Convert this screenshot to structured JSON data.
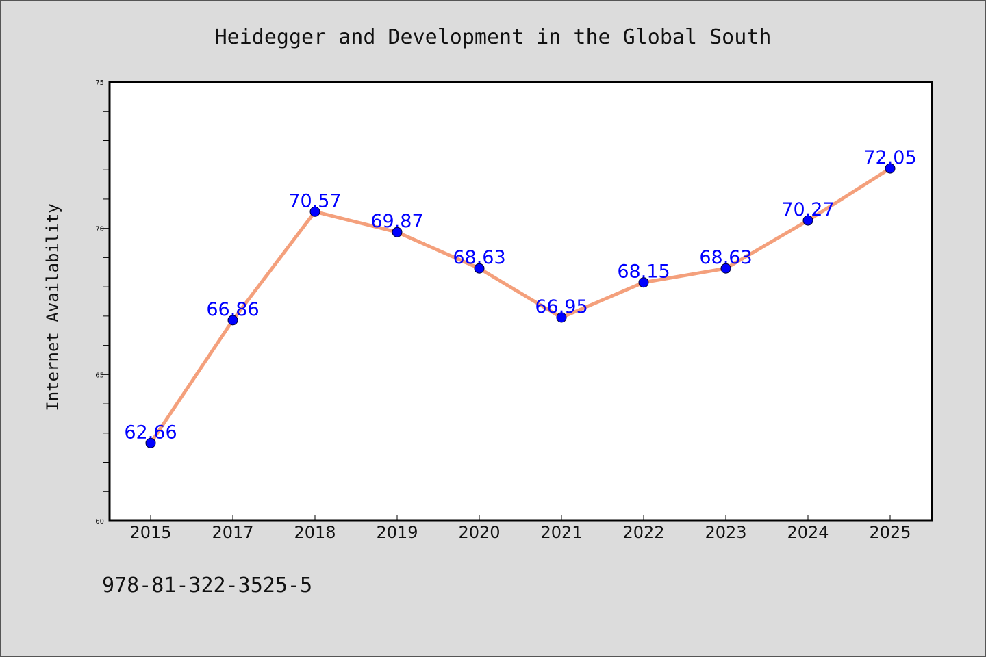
{
  "chart_data": {
    "type": "line",
    "title": "Heidegger and Development in the Global South",
    "xlabel": "",
    "ylabel": "Internet Availability",
    "categories": [
      "2015",
      "2017",
      "2018",
      "2019",
      "2020",
      "2021",
      "2022",
      "2023",
      "2024",
      "2025"
    ],
    "series": [
      {
        "values": [
          62.66,
          66.86,
          70.57,
          69.87,
          68.63,
          66.95,
          68.15,
          68.63,
          70.27,
          72.05
        ]
      }
    ],
    "data_labels": [
      "62.66",
      "66.86",
      "70.57",
      "69.87",
      "68.63",
      "66.95",
      "68.15",
      "68.63",
      "70.27",
      "72.05"
    ],
    "ylim": [
      60,
      75
    ],
    "y_ticks": [
      "60",
      "65",
      "70",
      "75"
    ],
    "grid": false,
    "legend": "none",
    "colors": {
      "line": "#f4a07c",
      "marker": "#0000ff",
      "data_label": "#0000ff",
      "background": "#dcdcdc",
      "plot_background": "#ffffff"
    }
  },
  "footer": {
    "isbn": "978-81-322-3525-5"
  }
}
